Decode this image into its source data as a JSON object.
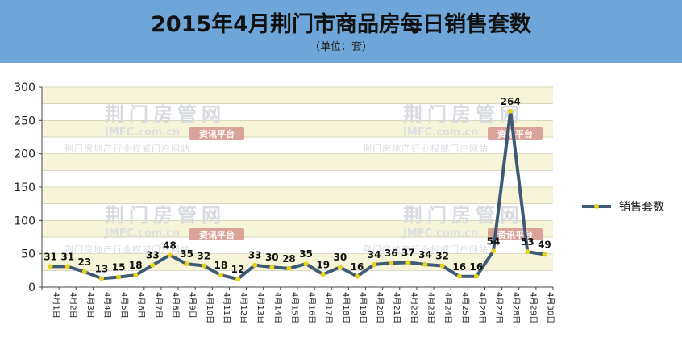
{
  "title": "2015年4月荆门市商品房每日销售套数",
  "subtitle": "（单位：套）",
  "watermark": {
    "logo": "荆门房管网",
    "site": "JMFC.com.cn",
    "tag": "资讯平台",
    "slogan": "荆门房地产行业权威门户网站"
  },
  "colors": {
    "header_bg": "#6ea6d9",
    "band_light": "#f7f5d9",
    "band_white": "#ffffff",
    "line": "#3f5b73",
    "marker": "#e8d21a"
  },
  "chart_data": {
    "type": "line",
    "title": "2015年4月荆门市商品房每日销售套数",
    "subtitle": "（单位：套）",
    "xlabel": "",
    "ylabel": "",
    "ylim": [
      0,
      300
    ],
    "yticks": [
      0,
      50,
      100,
      150,
      200,
      250,
      300
    ],
    "grid": true,
    "legend": "right",
    "categories": [
      "4月1日",
      "4月2日",
      "4月3日",
      "4月4日",
      "4月5日",
      "4月6日",
      "4月7日",
      "4月8日",
      "4月9日",
      "4月10日",
      "4月11日",
      "4月12日",
      "4月13日",
      "4月14日",
      "4月15日",
      "4月16日",
      "4月17日",
      "4月18日",
      "4月19日",
      "4月20日",
      "4月21日",
      "4月22日",
      "4月23日",
      "4月24日",
      "4月25日",
      "4月26日",
      "4月27日",
      "4月28日",
      "4月29日",
      "4月30日"
    ],
    "series": [
      {
        "name": "销售套数",
        "values": [
          31,
          31,
          23,
          13,
          15,
          18,
          33,
          48,
          35,
          32,
          18,
          12,
          33,
          30,
          28,
          35,
          19,
          30,
          16,
          34,
          36,
          37,
          34,
          32,
          16,
          16,
          54,
          264,
          53,
          49
        ]
      }
    ]
  }
}
